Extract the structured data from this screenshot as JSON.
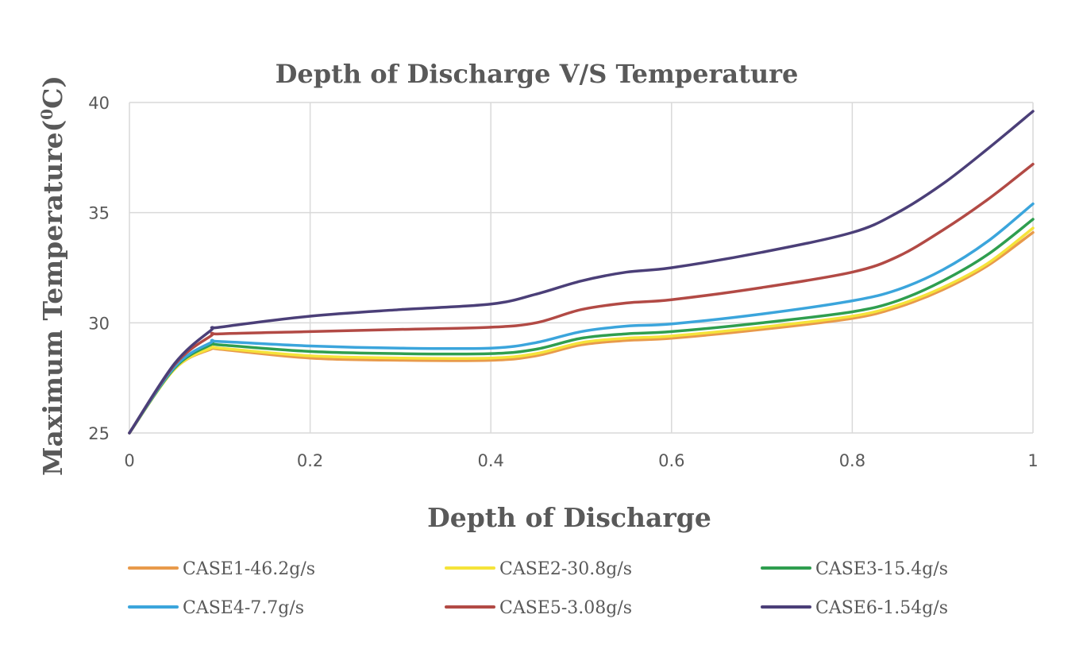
{
  "chart_data": {
    "type": "line",
    "title": "Depth of Discharge  V/S Temperature",
    "xlabel": "Depth of Discharge",
    "ylabel_main": "Maximum Temperature(",
    "ylabel_sup": "0",
    "ylabel_tail": "C)",
    "xlim": [
      0,
      1
    ],
    "ylim": [
      25,
      40
    ],
    "x_ticks": [
      0,
      0.2,
      0.4,
      0.6,
      0.8,
      1
    ],
    "x_tick_labels": [
      "0",
      "0.2",
      "0.4",
      "0.6",
      "0.8",
      "1"
    ],
    "y_ticks": [
      25,
      30,
      35,
      40
    ],
    "y_tick_labels": [
      "25",
      "30",
      "35",
      "40"
    ],
    "grid": true,
    "legend_position": "bottom",
    "x": [
      0,
      0.05,
      0.09,
      0.1,
      0.2,
      0.3,
      0.4,
      0.45,
      0.5,
      0.55,
      0.6,
      0.7,
      0.8,
      0.85,
      0.9,
      0.95,
      1.0
    ],
    "series": [
      {
        "name": "CASE1-46.2g/s",
        "color": "#e89a4b",
        "values": [
          25.0,
          27.9,
          28.8,
          28.8,
          28.4,
          28.3,
          28.3,
          28.5,
          29.0,
          29.2,
          29.3,
          29.7,
          30.2,
          30.7,
          31.5,
          32.6,
          34.1
        ]
      },
      {
        "name": "CASE2-30.8g/s",
        "color": "#f5e33a",
        "values": [
          25.0,
          27.9,
          28.85,
          28.85,
          28.5,
          28.4,
          28.4,
          28.6,
          29.1,
          29.3,
          29.4,
          29.8,
          30.3,
          30.8,
          31.6,
          32.7,
          34.3
        ]
      },
      {
        "name": "CASE3-15.4g/s",
        "color": "#2f9e4f",
        "values": [
          25.0,
          27.95,
          29.0,
          29.0,
          28.7,
          28.6,
          28.6,
          28.8,
          29.3,
          29.5,
          29.6,
          30.0,
          30.5,
          31.0,
          31.9,
          33.1,
          34.7
        ]
      },
      {
        "name": "CASE4-7.7g/s",
        "color": "#3ba5dc",
        "values": [
          25.0,
          28.0,
          29.1,
          29.15,
          28.95,
          28.85,
          28.85,
          29.1,
          29.6,
          29.85,
          29.95,
          30.4,
          31.0,
          31.5,
          32.4,
          33.7,
          35.4
        ]
      },
      {
        "name": "CASE5-3.08g/s",
        "color": "#b24a45",
        "values": [
          25.0,
          28.1,
          29.4,
          29.5,
          29.6,
          29.7,
          29.8,
          30.0,
          30.6,
          30.9,
          31.05,
          31.6,
          32.3,
          33.0,
          34.2,
          35.6,
          37.2
        ]
      },
      {
        "name": "CASE6-1.54g/s",
        "color": "#4b3f78",
        "values": [
          25.0,
          28.15,
          29.65,
          29.8,
          30.3,
          30.6,
          30.85,
          31.3,
          31.9,
          32.3,
          32.5,
          33.2,
          34.1,
          35.0,
          36.3,
          37.9,
          39.6
        ]
      }
    ]
  }
}
